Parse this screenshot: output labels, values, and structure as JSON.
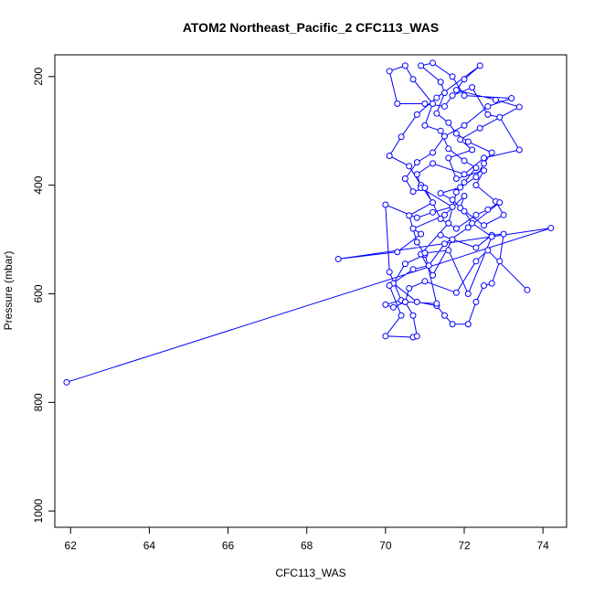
{
  "chart_data": {
    "type": "line",
    "title": "ATOM2 Northeast_Pacific_2 CFC113_WAS",
    "xlabel": "CFC113_WAS",
    "ylabel": "Pressure (mbar)",
    "xlim": [
      61.6,
      74.6
    ],
    "ylim": [
      1030,
      160
    ],
    "y_inverted": true,
    "x_ticks": [
      62,
      64,
      66,
      68,
      70,
      72,
      74
    ],
    "y_ticks": [
      200,
      400,
      600,
      800,
      1000
    ],
    "series_color": "#0000ff",
    "marker": "open-circle",
    "series": [
      {
        "points": [
          [
            61.9,
            763
          ],
          [
            74.2,
            479
          ],
          [
            68.8,
            536
          ],
          [
            70.3,
            523
          ],
          [
            70.9,
            490
          ],
          [
            70.7,
            480
          ],
          [
            71.5,
            455
          ],
          [
            72.0,
            420
          ],
          [
            71.9,
            442
          ],
          [
            72.5,
            474
          ],
          [
            73.0,
            455
          ],
          [
            72.8,
            430
          ],
          [
            72.3,
            400
          ],
          [
            72.5,
            373
          ],
          [
            71.8,
            388
          ],
          [
            71.6,
            350
          ],
          [
            72.2,
            335
          ],
          [
            71.9,
            316
          ],
          [
            72.4,
            295
          ],
          [
            73.4,
            256
          ],
          [
            72.8,
            243
          ],
          [
            71.8,
            225
          ],
          [
            72.0,
            205
          ],
          [
            72.4,
            180
          ],
          [
            71.3,
            239
          ],
          [
            70.8,
            270
          ],
          [
            70.4,
            311
          ],
          [
            70.1,
            346
          ],
          [
            70.6,
            365
          ],
          [
            70.9,
            400
          ],
          [
            71.2,
            432
          ],
          [
            70.6,
            456
          ],
          [
            70.8,
            505
          ],
          [
            71.0,
            528
          ],
          [
            70.5,
            545
          ],
          [
            70.2,
            581
          ],
          [
            70.8,
            615
          ],
          [
            71.3,
            622
          ],
          [
            71.5,
            640
          ],
          [
            71.7,
            656
          ],
          [
            72.1,
            656
          ],
          [
            72.3,
            615
          ],
          [
            72.5,
            585
          ],
          [
            72.7,
            581
          ],
          [
            72.9,
            540
          ],
          [
            73.0,
            490
          ],
          [
            72.7,
            492
          ],
          [
            72.3,
            515
          ],
          [
            71.4,
            492
          ],
          [
            71.7,
            500
          ],
          [
            71.2,
            566
          ],
          [
            70.9,
            527
          ],
          [
            71.6,
            470
          ],
          [
            71.8,
            413
          ],
          [
            72.0,
            395
          ],
          [
            72.3,
            368
          ],
          [
            72.0,
            355
          ],
          [
            71.6,
            333
          ],
          [
            71.4,
            300
          ],
          [
            71.0,
            290
          ],
          [
            71.2,
            250
          ],
          [
            70.7,
            205
          ],
          [
            70.5,
            180
          ],
          [
            70.1,
            190
          ],
          [
            70.3,
            250
          ],
          [
            71.0,
            250
          ],
          [
            71.5,
            255
          ],
          [
            71.7,
            235
          ],
          [
            72.2,
            220
          ],
          [
            72.6,
            270
          ],
          [
            72.9,
            275
          ],
          [
            73.4,
            335
          ],
          [
            72.5,
            350
          ],
          [
            72.0,
            380
          ],
          [
            71.2,
            360
          ],
          [
            70.8,
            380
          ],
          [
            70.9,
            405
          ],
          [
            71.7,
            440
          ],
          [
            71.2,
            450
          ],
          [
            70.8,
            460
          ],
          [
            70.0,
            436
          ],
          [
            70.1,
            560
          ],
          [
            70.4,
            612
          ],
          [
            70.0,
            620
          ],
          [
            70.2,
            625
          ],
          [
            70.5,
            615
          ],
          [
            71.3,
            618
          ],
          [
            71.0,
            525
          ],
          [
            71.6,
            520
          ],
          [
            72.1,
            600
          ],
          [
            72.7,
            495
          ],
          [
            72.2,
            470
          ],
          [
            72.0,
            448
          ],
          [
            71.7,
            427
          ],
          [
            71.4,
            415
          ],
          [
            71.9,
            404
          ],
          [
            72.3,
            385
          ],
          [
            72.5,
            360
          ],
          [
            72.7,
            340
          ],
          [
            72.1,
            320
          ],
          [
            71.8,
            305
          ],
          [
            71.6,
            285
          ],
          [
            71.3,
            268
          ],
          [
            71.5,
            230
          ],
          [
            71.4,
            210
          ],
          [
            70.9,
            180
          ],
          [
            71.2,
            175
          ],
          [
            71.7,
            200
          ],
          [
            72.0,
            235
          ],
          [
            73.2,
            240
          ],
          [
            72.6,
            255
          ],
          [
            72.0,
            290
          ],
          [
            71.5,
            310
          ],
          [
            71.2,
            340
          ],
          [
            70.8,
            358
          ],
          [
            70.5,
            388
          ],
          [
            70.7,
            412
          ],
          [
            71.0,
            405
          ],
          [
            71.4,
            462
          ],
          [
            71.8,
            480
          ],
          [
            72.3,
            455
          ],
          [
            72.6,
            445
          ],
          [
            72.9,
            432
          ],
          [
            72.1,
            478
          ],
          [
            71.5,
            508
          ],
          [
            71.1,
            548
          ],
          [
            70.7,
            555
          ],
          [
            70.1,
            585
          ],
          [
            70.4,
            640
          ],
          [
            70.0,
            678
          ],
          [
            70.7,
            680
          ],
          [
            70.8,
            678
          ],
          [
            70.7,
            640
          ],
          [
            70.5,
            615
          ],
          [
            70.6,
            590
          ],
          [
            71.0,
            577
          ],
          [
            71.8,
            598
          ],
          [
            72.3,
            540
          ],
          [
            72.6,
            520
          ],
          [
            73.6,
            593
          ]
        ]
      }
    ]
  }
}
